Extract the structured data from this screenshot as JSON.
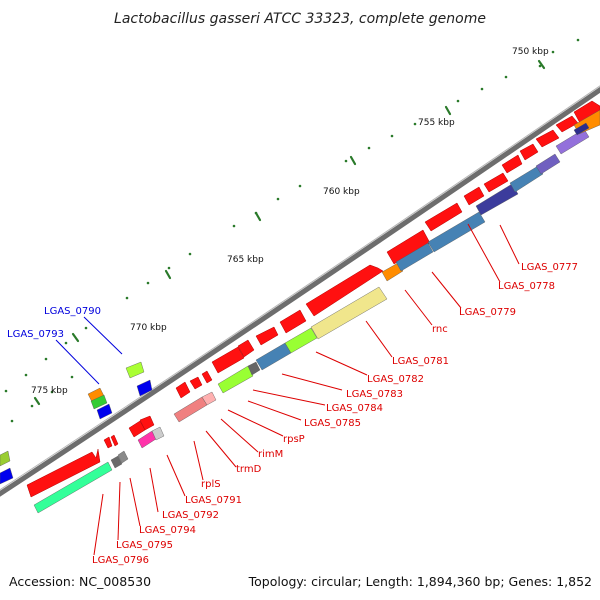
{
  "title": "Lactobacillus gasseri ATCC 33323, complete genome",
  "accession": "Accession: NC_008530",
  "topology": "Topology: circular; Length: 1,894,360 bp; Genes: 1,852",
  "colors": {
    "backbone": "#777777",
    "forward_gene": "#ff0000",
    "label_red": "#dd0000",
    "label_blue": "#0000dd",
    "tick": "#2a7a2a"
  },
  "ticks": [
    {
      "label": "750 kbp"
    },
    {
      "label": "755 kbp"
    },
    {
      "label": "760 kbp"
    },
    {
      "label": "765 kbp"
    },
    {
      "label": "770 kbp"
    },
    {
      "label": "775 kbp"
    }
  ],
  "gene_labels_red": [
    "LGAS_0777",
    "LGAS_0778",
    "LGAS_0779",
    "rnc",
    "LGAS_0781",
    "LGAS_0782",
    "LGAS_0783",
    "LGAS_0784",
    "LGAS_0785",
    "rpsP",
    "rimM",
    "trmD",
    "rplS",
    "LGAS_0791",
    "LGAS_0792",
    "LGAS_0794",
    "LGAS_0795",
    "LGAS_0796"
  ],
  "gene_labels_blue": [
    "LGAS_0790",
    "LGAS_0793"
  ]
}
